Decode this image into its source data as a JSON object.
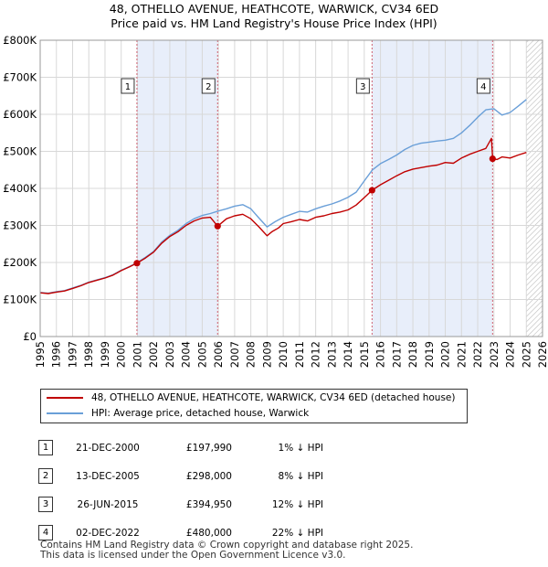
{
  "title_line1": "48, OTHELLO AVENUE, HEATHCOTE, WARWICK, CV34 6ED",
  "title_line2": "Price paid vs. HM Land Registry's House Price Index (HPI)",
  "colors": {
    "property": "#c00000",
    "hpi": "#6a9fd8",
    "shade": "#e8eefa",
    "marker_line": "#d06070",
    "grid": "#d8d8d8"
  },
  "legend": {
    "property_label": "48, OTHELLO AVENUE, HEATHCOTE, WARWICK, CV34 6ED (detached house)",
    "hpi_label": "HPI: Average price, detached house, Warwick"
  },
  "transactions": [
    {
      "num": "1",
      "date": "21-DEC-2000",
      "price": "£197,990",
      "hpi": "1% ↓ HPI"
    },
    {
      "num": "2",
      "date": "13-DEC-2005",
      "price": "£298,000",
      "hpi": "8% ↓ HPI"
    },
    {
      "num": "3",
      "date": "26-JUN-2015",
      "price": "£394,950",
      "hpi": "12% ↓ HPI"
    },
    {
      "num": "4",
      "date": "02-DEC-2022",
      "price": "£480,000",
      "hpi": "22% ↓ HPI"
    }
  ],
  "footer_line1": "Contains HM Land Registry data © Crown copyright and database right 2025.",
  "footer_line2": "This data is licensed under the Open Government Licence v3.0.",
  "chart_data": {
    "type": "line",
    "title": "48, OTHELLO AVENUE, HEATHCOTE, WARWICK, CV34 6ED — Price paid vs. HM Land Registry's House Price Index (HPI)",
    "xlim": [
      1995,
      2026
    ],
    "ylim": [
      0,
      800000
    ],
    "x_ticks": [
      1995,
      1996,
      1997,
      1998,
      1999,
      2000,
      2001,
      2002,
      2003,
      2004,
      2005,
      2006,
      2007,
      2008,
      2009,
      2010,
      2011,
      2012,
      2013,
      2014,
      2015,
      2016,
      2017,
      2018,
      2019,
      2020,
      2021,
      2022,
      2023,
      2024,
      2025,
      2026
    ],
    "y_ticks": [
      0,
      100000,
      200000,
      300000,
      400000,
      500000,
      600000,
      700000,
      800000
    ],
    "y_tick_labels": [
      "£0",
      "£100K",
      "£200K",
      "£300K",
      "£400K",
      "£500K",
      "£600K",
      "£700K",
      "£800K"
    ],
    "forecast_from": 2025.0,
    "shaded_periods": [
      [
        2000.97,
        2005.95
      ],
      [
        2015.48,
        2022.92
      ]
    ],
    "sales": [
      {
        "label": "1",
        "x": 2000.97,
        "y": 197990
      },
      {
        "label": "2",
        "x": 2005.95,
        "y": 298000
      },
      {
        "label": "3",
        "x": 2015.48,
        "y": 394950
      },
      {
        "label": "4",
        "x": 2022.92,
        "y": 480000
      }
    ],
    "series": [
      {
        "name": "48, OTHELLO AVENUE, HEATHCOTE, WARWICK, CV34 6ED (detached house)",
        "x": [
          1995.0,
          1995.5,
          1996.0,
          1996.5,
          1997.0,
          1997.5,
          1998.0,
          1998.5,
          1999.0,
          1999.5,
          2000.0,
          2000.5,
          2000.97,
          2001.5,
          2002.0,
          2002.5,
          2003.0,
          2003.5,
          2004.0,
          2004.5,
          2005.0,
          2005.5,
          2005.95,
          2006.5,
          2007.0,
          2007.5,
          2008.0,
          2008.5,
          2009.0,
          2009.3,
          2009.7,
          2010.0,
          2010.5,
          2011.0,
          2011.5,
          2012.0,
          2012.5,
          2013.0,
          2013.5,
          2014.0,
          2014.5,
          2015.0,
          2015.48,
          2016.0,
          2016.5,
          2017.0,
          2017.5,
          2018.0,
          2018.5,
          2019.0,
          2019.5,
          2020.0,
          2020.5,
          2021.0,
          2021.5,
          2022.0,
          2022.5,
          2022.85,
          2022.92,
          2023.2,
          2023.5,
          2024.0,
          2024.5,
          2025.0
        ],
        "y": [
          118000,
          116000,
          120000,
          123000,
          130000,
          137000,
          146000,
          152000,
          158000,
          166000,
          178000,
          188000,
          197990,
          212000,
          228000,
          252000,
          270000,
          283000,
          300000,
          312000,
          320000,
          322000,
          298000,
          318000,
          326000,
          330000,
          318000,
          296000,
          272000,
          283000,
          293000,
          305000,
          310000,
          316000,
          312000,
          322000,
          326000,
          332000,
          336000,
          342000,
          355000,
          375000,
          394950,
          410000,
          422000,
          434000,
          445000,
          452000,
          456000,
          460000,
          463000,
          470000,
          468000,
          482000,
          492000,
          500000,
          508000,
          535000,
          480000,
          478000,
          485000,
          482000,
          490000,
          497000
        ]
      },
      {
        "name": "HPI: Average price, detached house, Warwick",
        "x": [
          1995.0,
          1995.5,
          1996.0,
          1996.5,
          1997.0,
          1997.5,
          1998.0,
          1998.5,
          1999.0,
          1999.5,
          2000.0,
          2000.5,
          2001.0,
          2001.5,
          2002.0,
          2002.5,
          2003.0,
          2003.5,
          2004.0,
          2004.5,
          2005.0,
          2005.5,
          2006.0,
          2006.5,
          2007.0,
          2007.5,
          2008.0,
          2008.5,
          2009.0,
          2009.5,
          2010.0,
          2010.5,
          2011.0,
          2011.5,
          2012.0,
          2012.5,
          2013.0,
          2013.5,
          2014.0,
          2014.5,
          2015.0,
          2015.5,
          2016.0,
          2016.5,
          2017.0,
          2017.5,
          2018.0,
          2018.5,
          2019.0,
          2019.5,
          2020.0,
          2020.5,
          2021.0,
          2021.5,
          2022.0,
          2022.5,
          2023.0,
          2023.5,
          2024.0,
          2024.5,
          2025.0
        ],
        "y": [
          119000,
          117000,
          121000,
          124000,
          131000,
          138000,
          147000,
          153000,
          159000,
          167000,
          179000,
          189000,
          200000,
          214000,
          230000,
          255000,
          273000,
          287000,
          305000,
          318000,
          327000,
          332000,
          339000,
          345000,
          352000,
          356000,
          345000,
          320000,
          296000,
          310000,
          322000,
          330000,
          338000,
          336000,
          345000,
          352000,
          358000,
          366000,
          376000,
          390000,
          420000,
          450000,
          467000,
          478000,
          490000,
          505000,
          516000,
          522000,
          525000,
          528000,
          530000,
          535000,
          550000,
          570000,
          592000,
          612000,
          615000,
          598000,
          605000,
          622000,
          640000
        ]
      }
    ]
  }
}
